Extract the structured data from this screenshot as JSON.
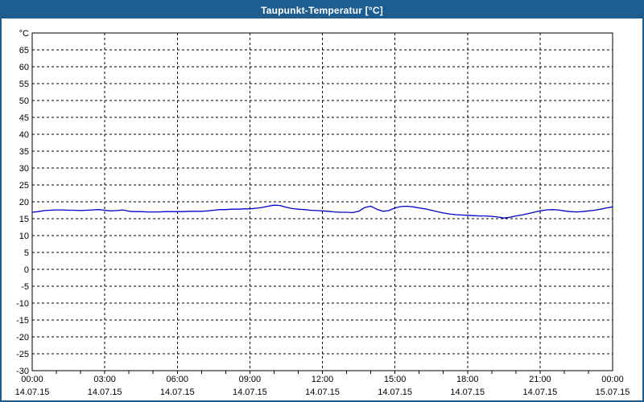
{
  "window": {
    "title": "Taupunkt-Temperatur [°C]"
  },
  "colors": {
    "titlebar": "#1d5d8f",
    "window_border": "#1d5d8f",
    "plot_border": "#000000",
    "grid": "#000000",
    "line": "#0000cc",
    "background": "#ffffff"
  },
  "chart_data": {
    "type": "line",
    "title": "Taupunkt-Temperatur [°C]",
    "ylabel": "°C",
    "xlabel": "",
    "ylim": [
      -30,
      70
    ],
    "y_ticks": [
      65,
      60,
      55,
      50,
      45,
      40,
      35,
      30,
      25,
      20,
      15,
      10,
      5,
      0,
      -5,
      -10,
      -15,
      -20,
      -25,
      -30
    ],
    "grid": "dashed",
    "legend_position": "none",
    "x_hours_range": [
      0,
      24
    ],
    "x_ticks": [
      {
        "hour": 0,
        "time": "00:00",
        "date": "14.07.15"
      },
      {
        "hour": 3,
        "time": "03:00",
        "date": "14.07.15"
      },
      {
        "hour": 6,
        "time": "06:00",
        "date": "14.07.15"
      },
      {
        "hour": 9,
        "time": "09:00",
        "date": "14.07.15"
      },
      {
        "hour": 12,
        "time": "12:00",
        "date": "14.07.15"
      },
      {
        "hour": 15,
        "time": "15:00",
        "date": "14.07.15"
      },
      {
        "hour": 18,
        "time": "18:00",
        "date": "14.07.15"
      },
      {
        "hour": 21,
        "time": "21:00",
        "date": "14.07.15"
      },
      {
        "hour": 24,
        "time": "00:00",
        "date": "15.07.15"
      }
    ],
    "series": [
      {
        "name": "Taupunkt-Temperatur",
        "color": "#0000cc",
        "x_start_hour": 0,
        "x_step_hours": 0.25,
        "values": [
          16.9,
          17.1,
          17.4,
          17.5,
          17.6,
          17.6,
          17.5,
          17.5,
          17.4,
          17.5,
          17.6,
          17.7,
          17.5,
          17.3,
          17.4,
          17.6,
          17.2,
          17.1,
          17.1,
          17.0,
          17.0,
          17.0,
          17.1,
          17.1,
          17.1,
          17.1,
          17.2,
          17.2,
          17.2,
          17.3,
          17.5,
          17.7,
          17.7,
          17.8,
          17.8,
          17.9,
          17.9,
          18.1,
          18.3,
          18.7,
          19.0,
          18.9,
          18.4,
          18.0,
          17.8,
          17.7,
          17.5,
          17.4,
          17.3,
          17.2,
          17.0,
          16.9,
          16.9,
          16.8,
          17.2,
          18.3,
          18.7,
          17.8,
          17.2,
          17.4,
          18.2,
          18.6,
          18.7,
          18.5,
          18.2,
          17.9,
          17.5,
          17.1,
          16.7,
          16.4,
          16.2,
          16.1,
          16.0,
          15.9,
          15.8,
          15.8,
          15.7,
          15.5,
          15.2,
          15.4,
          15.8,
          16.1,
          16.5,
          16.9,
          17.3,
          17.6,
          17.7,
          17.6,
          17.3,
          17.1,
          17.0,
          17.1,
          17.3,
          17.5,
          17.8,
          18.2,
          18.5
        ]
      }
    ]
  }
}
